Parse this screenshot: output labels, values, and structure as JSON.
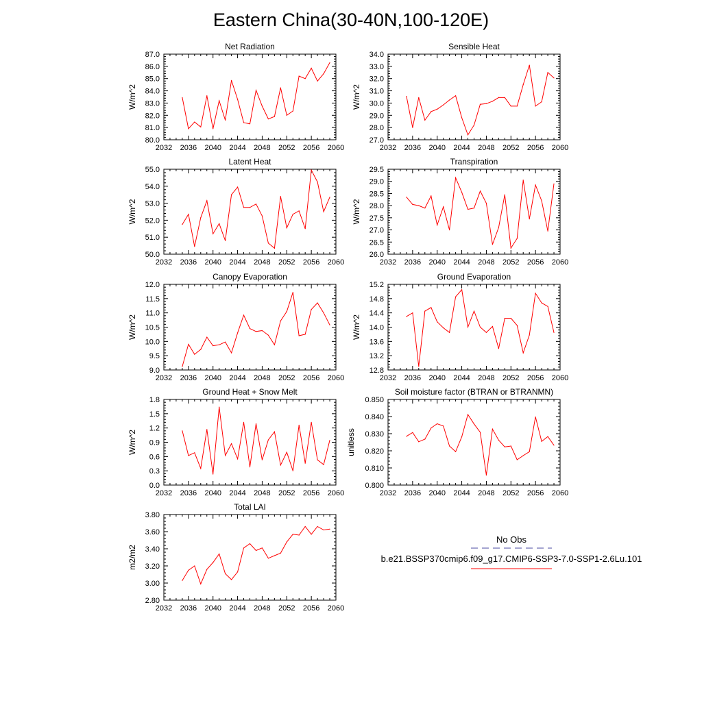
{
  "page": {
    "title": "Eastern China(30-40N,100-120E)"
  },
  "legend": {
    "obs_label": "No Obs",
    "case_label": "b.e21.BSSP370cmip6.f09_g17.CMIP6-SSP3-7.0-SSP1-2.6Lu.101",
    "obs_color": "#4a4aa0",
    "case_color": "#ff0000"
  },
  "chart_data": [
    {
      "type": "line",
      "title": "Net Radiation",
      "ylabel": "W/m^2",
      "xlim": [
        2032,
        2060
      ],
      "ylim": [
        80.0,
        87.0
      ],
      "xticks": [
        "2032",
        "2036",
        "2040",
        "2044",
        "2048",
        "2052",
        "2056",
        "2060"
      ],
      "yticks": [
        "80.0",
        "81.0",
        "82.0",
        "83.0",
        "84.0",
        "85.0",
        "86.0",
        "87.0"
      ],
      "series": [
        {
          "color": "#ff0000",
          "x": [
            2035,
            2036,
            2037,
            2038,
            2039,
            2040,
            2041,
            2042,
            2043,
            2044,
            2045,
            2046,
            2047,
            2048,
            2049,
            2050,
            2051,
            2052,
            2053,
            2054,
            2055,
            2056,
            2057,
            2058,
            2059
          ],
          "values": [
            83.45,
            80.9,
            81.45,
            81.05,
            83.6,
            80.9,
            83.2,
            81.6,
            84.85,
            83.3,
            81.4,
            81.3,
            84.05,
            82.75,
            81.7,
            81.9,
            84.25,
            82.0,
            82.35,
            85.2,
            85.0,
            85.85,
            84.8,
            85.4,
            86.3
          ]
        }
      ]
    },
    {
      "type": "line",
      "title": "Sensible Heat",
      "ylabel": "W/m^2",
      "xlim": [
        2032,
        2060
      ],
      "ylim": [
        27.0,
        34.0
      ],
      "xticks": [
        "2032",
        "2036",
        "2040",
        "2044",
        "2048",
        "2052",
        "2056",
        "2060"
      ],
      "yticks": [
        "27.0",
        "28.0",
        "29.0",
        "30.0",
        "31.0",
        "32.0",
        "33.0",
        "34.0"
      ],
      "series": [
        {
          "color": "#ff0000",
          "x": [
            2035,
            2036,
            2037,
            2038,
            2039,
            2040,
            2041,
            2042,
            2043,
            2044,
            2045,
            2046,
            2047,
            2048,
            2049,
            2050,
            2051,
            2052,
            2053,
            2054,
            2055,
            2056,
            2057,
            2058,
            2059
          ],
          "values": [
            30.55,
            28.0,
            30.45,
            28.6,
            29.3,
            29.5,
            29.85,
            30.25,
            30.6,
            28.8,
            27.4,
            28.2,
            29.9,
            29.95,
            30.15,
            30.45,
            30.45,
            29.75,
            29.75,
            31.5,
            33.1,
            29.75,
            30.1,
            32.5,
            32.05
          ]
        }
      ]
    },
    {
      "type": "line",
      "title": "Latent Heat",
      "ylabel": "W/m^2",
      "xlim": [
        2032,
        2060
      ],
      "ylim": [
        50.0,
        55.0
      ],
      "xticks": [
        "2032",
        "2036",
        "2040",
        "2044",
        "2048",
        "2052",
        "2056",
        "2060"
      ],
      "yticks": [
        "50.0",
        "51.0",
        "52.0",
        "53.0",
        "54.0",
        "55.0"
      ],
      "series": [
        {
          "color": "#ff0000",
          "x": [
            2035,
            2036,
            2037,
            2038,
            2039,
            2040,
            2041,
            2042,
            2043,
            2044,
            2045,
            2046,
            2047,
            2048,
            2049,
            2050,
            2051,
            2052,
            2053,
            2054,
            2055,
            2056,
            2057,
            2058,
            2059
          ],
          "values": [
            51.75,
            52.35,
            50.45,
            52.15,
            53.15,
            51.2,
            51.8,
            50.8,
            53.5,
            53.95,
            52.75,
            52.75,
            52.95,
            52.25,
            50.65,
            50.35,
            53.4,
            51.55,
            52.35,
            52.55,
            51.5,
            54.95,
            54.25,
            52.5,
            53.35
          ]
        }
      ]
    },
    {
      "type": "line",
      "title": "Transpiration",
      "ylabel": "W/m^2",
      "xlim": [
        2032,
        2060
      ],
      "ylim": [
        26.0,
        29.5
      ],
      "xticks": [
        "2032",
        "2036",
        "2040",
        "2044",
        "2048",
        "2052",
        "2056",
        "2060"
      ],
      "yticks": [
        "26.0",
        "26.5",
        "27.0",
        "27.5",
        "28.0",
        "28.5",
        "29.0",
        "29.5"
      ],
      "series": [
        {
          "color": "#ff0000",
          "x": [
            2035,
            2036,
            2037,
            2038,
            2039,
            2040,
            2041,
            2042,
            2043,
            2044,
            2045,
            2046,
            2047,
            2048,
            2049,
            2050,
            2051,
            2052,
            2053,
            2054,
            2055,
            2056,
            2057,
            2058,
            2059
          ],
          "values": [
            28.35,
            28.05,
            28.0,
            27.9,
            28.4,
            27.2,
            27.95,
            27.0,
            29.15,
            28.55,
            27.85,
            27.9,
            28.6,
            28.1,
            26.4,
            27.1,
            28.45,
            26.25,
            26.65,
            29.05,
            27.45,
            28.85,
            28.2,
            26.95,
            28.9
          ]
        }
      ]
    },
    {
      "type": "line",
      "title": "Canopy Evaporation",
      "ylabel": "W/m^2",
      "xlim": [
        2032,
        2060
      ],
      "ylim": [
        9.0,
        12.0
      ],
      "xticks": [
        "2032",
        "2036",
        "2040",
        "2044",
        "2048",
        "2052",
        "2056",
        "2060"
      ],
      "yticks": [
        "9.0",
        "9.5",
        "10.0",
        "10.5",
        "11.0",
        "11.5",
        "12.0"
      ],
      "series": [
        {
          "color": "#ff0000",
          "x": [
            2035,
            2036,
            2037,
            2038,
            2039,
            2040,
            2041,
            2042,
            2043,
            2044,
            2045,
            2046,
            2047,
            2048,
            2049,
            2050,
            2051,
            2052,
            2053,
            2054,
            2055,
            2056,
            2057,
            2058,
            2059
          ],
          "values": [
            9.12,
            9.9,
            9.55,
            9.72,
            10.15,
            9.85,
            9.88,
            9.98,
            9.6,
            10.3,
            10.92,
            10.45,
            10.35,
            10.38,
            10.22,
            9.88,
            10.72,
            11.05,
            11.72,
            10.2,
            10.25,
            11.12,
            11.35,
            11.0,
            10.58
          ]
        }
      ]
    },
    {
      "type": "line",
      "title": "Ground Evaporation",
      "ylabel": "W/m^2",
      "xlim": [
        2032,
        2060
      ],
      "ylim": [
        12.8,
        15.2
      ],
      "xticks": [
        "2032",
        "2036",
        "2040",
        "2044",
        "2048",
        "2052",
        "2056",
        "2060"
      ],
      "yticks": [
        "12.8",
        "13.2",
        "13.6",
        "14.0",
        "14.4",
        "14.8",
        "15.2"
      ],
      "series": [
        {
          "color": "#ff0000",
          "x": [
            2035,
            2036,
            2037,
            2038,
            2039,
            2040,
            2041,
            2042,
            2043,
            2044,
            2045,
            2046,
            2047,
            2048,
            2049,
            2050,
            2051,
            2052,
            2053,
            2054,
            2055,
            2056,
            2057,
            2058,
            2059
          ],
          "values": [
            14.3,
            14.4,
            12.9,
            14.45,
            14.55,
            14.15,
            13.98,
            13.85,
            14.85,
            15.05,
            14.0,
            14.45,
            14.0,
            13.85,
            14.02,
            13.4,
            14.25,
            14.25,
            14.05,
            13.28,
            13.78,
            14.95,
            14.68,
            14.58,
            13.85
          ]
        }
      ]
    },
    {
      "type": "line",
      "title": "Ground Heat + Snow Melt",
      "ylabel": "W/m^2",
      "xlim": [
        2032,
        2060
      ],
      "ylim": [
        0.0,
        1.8
      ],
      "xticks": [
        "2032",
        "2036",
        "2040",
        "2044",
        "2048",
        "2052",
        "2056",
        "2060"
      ],
      "yticks": [
        "0.0",
        "0.3",
        "0.6",
        "0.9",
        "1.2",
        "1.5",
        "1.8"
      ],
      "series": [
        {
          "color": "#ff0000",
          "x": [
            2035,
            2036,
            2037,
            2038,
            2039,
            2040,
            2041,
            2042,
            2043,
            2044,
            2045,
            2046,
            2047,
            2048,
            2049,
            2050,
            2051,
            2052,
            2053,
            2054,
            2055,
            2056,
            2057,
            2058,
            2059
          ],
          "values": [
            1.14,
            0.62,
            0.68,
            0.35,
            1.17,
            0.23,
            1.64,
            0.62,
            0.87,
            0.55,
            1.32,
            0.38,
            1.29,
            0.53,
            0.95,
            1.12,
            0.42,
            0.69,
            0.3,
            1.26,
            0.46,
            1.32,
            0.53,
            0.43,
            0.94
          ]
        }
      ]
    },
    {
      "type": "line",
      "title": "Soil moisture factor (BTRAN or BTRANMN)",
      "ylabel": "unitless",
      "xlim": [
        2032,
        2060
      ],
      "ylim": [
        0.8,
        0.85
      ],
      "xticks": [
        "2032",
        "2036",
        "2040",
        "2044",
        "2048",
        "2052",
        "2056",
        "2060"
      ],
      "yticks": [
        "0.800",
        "0.810",
        "0.820",
        "0.830",
        "0.840",
        "0.850"
      ],
      "series": [
        {
          "color": "#ff0000",
          "x": [
            2035,
            2036,
            2037,
            2038,
            2039,
            2040,
            2041,
            2042,
            2043,
            2044,
            2045,
            2046,
            2047,
            2048,
            2049,
            2050,
            2051,
            2052,
            2053,
            2054,
            2055,
            2056,
            2057,
            2058,
            2059
          ],
          "values": [
            0.8285,
            0.8307,
            0.8253,
            0.8268,
            0.8333,
            0.8358,
            0.8345,
            0.8228,
            0.8195,
            0.8282,
            0.8412,
            0.8357,
            0.8308,
            0.8058,
            0.8327,
            0.8262,
            0.8223,
            0.8228,
            0.8148,
            0.8172,
            0.8195,
            0.8398,
            0.8255,
            0.8283,
            0.8233
          ]
        }
      ]
    },
    {
      "type": "line",
      "title": "Total LAI",
      "ylabel": "m2/m2",
      "xlim": [
        2032,
        2060
      ],
      "ylim": [
        2.8,
        3.8
      ],
      "xticks": [
        "2032",
        "2036",
        "2040",
        "2044",
        "2048",
        "2052",
        "2056",
        "2060"
      ],
      "yticks": [
        "2.80",
        "3.00",
        "3.20",
        "3.40",
        "3.60",
        "3.80"
      ],
      "series": [
        {
          "color": "#ff0000",
          "x": [
            2035,
            2036,
            2037,
            2038,
            2039,
            2040,
            2041,
            2042,
            2043,
            2044,
            2045,
            2046,
            2047,
            2048,
            2049,
            2050,
            2051,
            2052,
            2053,
            2054,
            2055,
            2056,
            2057,
            2058,
            2059
          ],
          "values": [
            3.03,
            3.15,
            3.2,
            2.99,
            3.16,
            3.24,
            3.34,
            3.11,
            3.04,
            3.13,
            3.41,
            3.46,
            3.38,
            3.41,
            3.29,
            3.32,
            3.35,
            3.48,
            3.57,
            3.56,
            3.66,
            3.57,
            3.66,
            3.62,
            3.63
          ]
        }
      ]
    }
  ]
}
